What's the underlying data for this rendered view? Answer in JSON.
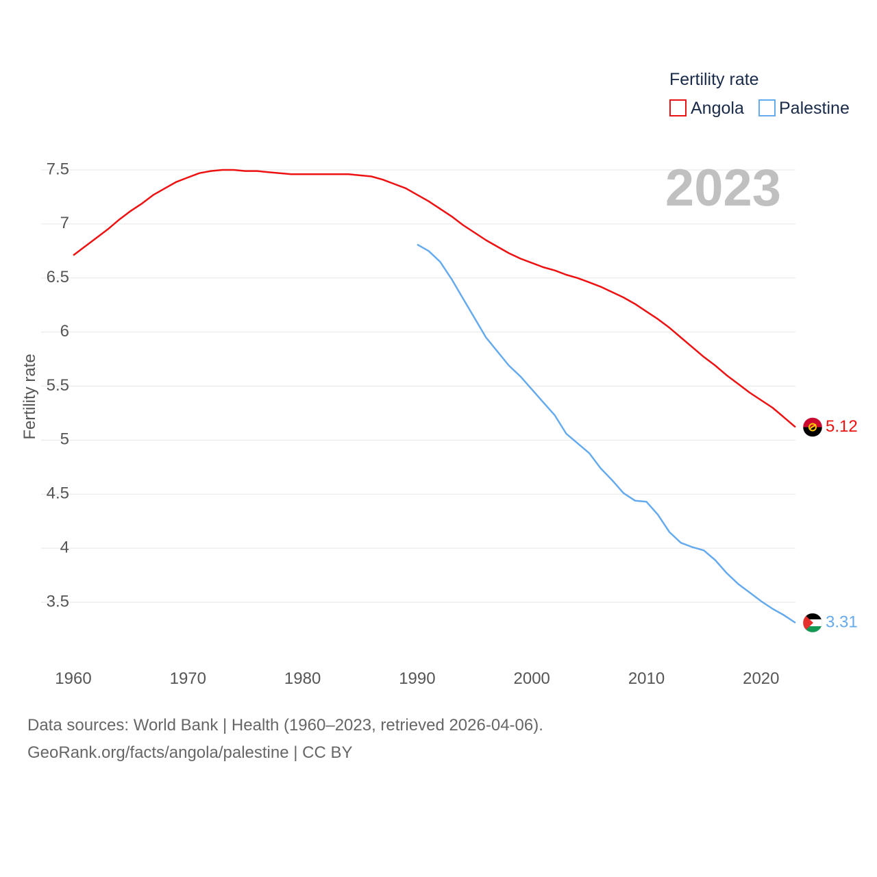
{
  "chart_data": {
    "type": "line",
    "title": "",
    "year_label": "2023",
    "xlabel": "",
    "ylabel": "Fertility rate",
    "xlim": [
      1960,
      2023
    ],
    "ylim": [
      3.1,
      7.6
    ],
    "x_ticks": [
      1960,
      1970,
      1980,
      1990,
      2000,
      2010,
      2020
    ],
    "y_ticks": [
      3.5,
      4,
      4.5,
      5,
      5.5,
      6,
      6.5,
      7,
      7.5
    ],
    "y_tick_labels": [
      "3.5",
      "4",
      "4.5",
      "5",
      "5.5",
      "6",
      "6.5",
      "7",
      "7.5"
    ],
    "grid": true,
    "legend": {
      "title": "Fertility rate",
      "position": "top-right"
    },
    "series": [
      {
        "name": "Angola",
        "color": "#ee1111",
        "end_label": "5.12",
        "flag": "angola-flag-icon",
        "x": [
          1960,
          1961,
          1962,
          1963,
          1964,
          1965,
          1966,
          1967,
          1968,
          1969,
          1970,
          1971,
          1972,
          1973,
          1974,
          1975,
          1976,
          1977,
          1978,
          1979,
          1980,
          1981,
          1982,
          1983,
          1984,
          1985,
          1986,
          1987,
          1988,
          1989,
          1990,
          1991,
          1992,
          1993,
          1994,
          1995,
          1996,
          1997,
          1998,
          1999,
          2000,
          2001,
          2002,
          2003,
          2004,
          2005,
          2006,
          2007,
          2008,
          2009,
          2010,
          2011,
          2012,
          2013,
          2014,
          2015,
          2016,
          2017,
          2018,
          2019,
          2020,
          2021,
          2022,
          2023
        ],
        "values": [
          6.71,
          6.79,
          6.87,
          6.95,
          7.04,
          7.12,
          7.19,
          7.27,
          7.33,
          7.39,
          7.43,
          7.47,
          7.49,
          7.5,
          7.5,
          7.49,
          7.49,
          7.48,
          7.47,
          7.46,
          7.46,
          7.46,
          7.46,
          7.46,
          7.46,
          7.45,
          7.44,
          7.41,
          7.37,
          7.33,
          7.27,
          7.21,
          7.14,
          7.07,
          6.99,
          6.92,
          6.85,
          6.79,
          6.73,
          6.68,
          6.64,
          6.6,
          6.57,
          6.53,
          6.5,
          6.46,
          6.42,
          6.37,
          6.32,
          6.26,
          6.19,
          6.12,
          6.04,
          5.95,
          5.86,
          5.77,
          5.69,
          5.6,
          5.52,
          5.44,
          5.37,
          5.3,
          5.21,
          5.12
        ]
      },
      {
        "name": "Palestine",
        "color": "#66aaee",
        "end_label": "3.31",
        "flag": "palestine-flag-icon",
        "x": [
          1990,
          1991,
          1992,
          1993,
          1994,
          1995,
          1996,
          1997,
          1998,
          1999,
          2000,
          2001,
          2002,
          2003,
          2004,
          2005,
          2006,
          2007,
          2008,
          2009,
          2010,
          2011,
          2012,
          2013,
          2014,
          2015,
          2016,
          2017,
          2018,
          2019,
          2020,
          2021,
          2022,
          2023
        ],
        "values": [
          6.81,
          6.75,
          6.65,
          6.49,
          6.31,
          6.13,
          5.95,
          5.82,
          5.69,
          5.59,
          5.47,
          5.35,
          5.23,
          5.06,
          4.97,
          4.88,
          4.74,
          4.63,
          4.51,
          4.44,
          4.43,
          4.31,
          4.15,
          4.05,
          4.01,
          3.98,
          3.89,
          3.77,
          3.67,
          3.59,
          3.51,
          3.44,
          3.38,
          3.31
        ]
      }
    ]
  },
  "source": {
    "line1": "Data sources: World Bank | Health (1960–2023, retrieved 2026-04-06).",
    "line2": "GeoRank.org/facts/angola/palestine | CC BY"
  }
}
